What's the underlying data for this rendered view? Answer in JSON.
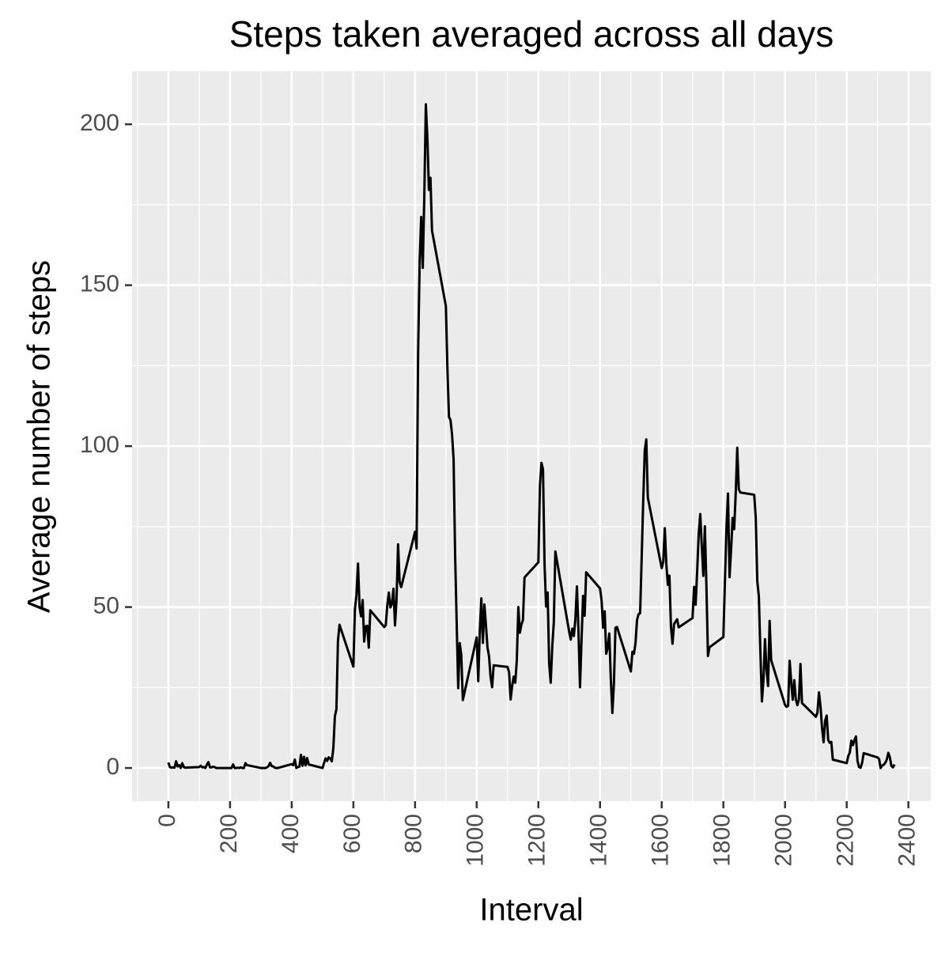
{
  "chart_data": {
    "type": "line",
    "title": "Steps taken averaged across all days",
    "x_label": "Interval",
    "y_label": "Average number of steps",
    "x": [
      0,
      5,
      10,
      15,
      20,
      25,
      30,
      35,
      40,
      45,
      50,
      55,
      100,
      105,
      110,
      115,
      120,
      125,
      130,
      135,
      140,
      145,
      150,
      155,
      200,
      205,
      210,
      215,
      220,
      225,
      230,
      235,
      240,
      245,
      250,
      255,
      300,
      305,
      310,
      315,
      320,
      325,
      330,
      335,
      340,
      345,
      350,
      355,
      400,
      405,
      410,
      415,
      420,
      425,
      430,
      435,
      440,
      445,
      450,
      455,
      500,
      505,
      510,
      515,
      520,
      525,
      530,
      535,
      540,
      545,
      550,
      555,
      600,
      605,
      610,
      615,
      620,
      625,
      630,
      635,
      640,
      645,
      650,
      655,
      700,
      705,
      710,
      715,
      720,
      725,
      730,
      735,
      740,
      745,
      750,
      755,
      800,
      805,
      810,
      815,
      820,
      825,
      830,
      835,
      840,
      845,
      850,
      855,
      900,
      905,
      910,
      915,
      920,
      925,
      930,
      935,
      940,
      945,
      950,
      955,
      1000,
      1005,
      1010,
      1015,
      1020,
      1025,
      1030,
      1035,
      1040,
      1045,
      1050,
      1055,
      1100,
      1105,
      1110,
      1115,
      1120,
      1125,
      1130,
      1135,
      1140,
      1145,
      1150,
      1155,
      1200,
      1205,
      1210,
      1215,
      1220,
      1225,
      1230,
      1235,
      1240,
      1245,
      1250,
      1255,
      1300,
      1305,
      1310,
      1315,
      1320,
      1325,
      1330,
      1335,
      1340,
      1345,
      1350,
      1355,
      1400,
      1405,
      1410,
      1415,
      1420,
      1425,
      1430,
      1435,
      1440,
      1445,
      1450,
      1455,
      1500,
      1505,
      1510,
      1515,
      1520,
      1525,
      1530,
      1535,
      1540,
      1545,
      1550,
      1555,
      1600,
      1605,
      1610,
      1615,
      1620,
      1625,
      1630,
      1635,
      1640,
      1645,
      1650,
      1655,
      1700,
      1705,
      1710,
      1715,
      1720,
      1725,
      1730,
      1735,
      1740,
      1745,
      1750,
      1755,
      1800,
      1805,
      1810,
      1815,
      1820,
      1825,
      1830,
      1835,
      1840,
      1845,
      1850,
      1855,
      1900,
      1905,
      1910,
      1915,
      1920,
      1925,
      1930,
      1935,
      1940,
      1945,
      1950,
      1955,
      2000,
      2005,
      2010,
      2015,
      2020,
      2025,
      2030,
      2035,
      2040,
      2045,
      2050,
      2055,
      2100,
      2105,
      2110,
      2115,
      2120,
      2125,
      2130,
      2135,
      2140,
      2145,
      2150,
      2155,
      2200,
      2205,
      2210,
      2215,
      2220,
      2225,
      2230,
      2235,
      2240,
      2245,
      2250,
      2255,
      2300,
      2305,
      2310,
      2315,
      2320,
      2325,
      2330,
      2335,
      2340,
      2345,
      2350,
      2355
    ],
    "series": [
      {
        "color": "#000000",
        "values": [
          1.7,
          0.3,
          0.1,
          0.2,
          0.1,
          2.1,
          0.5,
          0.9,
          0,
          1.5,
          0.3,
          0.1,
          0.3,
          0.7,
          0.2,
          0.3,
          0,
          1.1,
          1.8,
          0.2,
          0.2,
          0.4,
          0.3,
          0,
          0,
          0,
          1.1,
          0,
          0,
          0.1,
          0,
          0.2,
          0,
          0,
          1.5,
          0.9,
          0,
          0,
          0,
          0,
          0.2,
          0.6,
          1.6,
          0.6,
          0.5,
          0.1,
          0,
          0,
          1.2,
          0.9,
          2.6,
          0,
          0.3,
          0.4,
          4.1,
          0.7,
          3.5,
          0.8,
          3.1,
          1.1,
          0,
          1.6,
          3,
          2.2,
          3.3,
          3,
          2.1,
          6.1,
          16,
          18.3,
          39.5,
          44.5,
          31.5,
          49.3,
          53.8,
          63.5,
          50,
          47.1,
          52.2,
          39.3,
          44,
          44.2,
          37.4,
          49,
          43.8,
          44.4,
          50.5,
          54.5,
          49.9,
          51,
          55.7,
          44.3,
          52.3,
          69.5,
          57.8,
          56.2,
          73.4,
          68.2,
          129.4,
          157.5,
          171.2,
          155.4,
          177.3,
          206.2,
          195.9,
          179.6,
          183.4,
          167,
          143.5,
          124,
          109.1,
          108.1,
          103.7,
          96,
          66.2,
          45.2,
          24.8,
          38.8,
          35,
          21.1,
          40.6,
          27,
          42.4,
          52.7,
          38.9,
          50.8,
          44.3,
          37.4,
          34.7,
          28.3,
          25.1,
          31.9,
          31.4,
          29.7,
          21.3,
          25.5,
          28.4,
          26.5,
          33.4,
          50,
          42,
          44.6,
          46,
          59.2,
          63.9,
          87.7,
          94.8,
          92.8,
          63.4,
          50.2,
          54.5,
          32.4,
          26.5,
          37.7,
          45.1,
          67.3,
          42.3,
          39.9,
          43.3,
          41,
          46.2,
          56.4,
          42.8,
          25.1,
          40,
          53.5,
          47.3,
          60.8,
          55.8,
          52,
          43.6,
          48.7,
          35.5,
          37.5,
          41.8,
          27.5,
          17.1,
          26.1,
          43.6,
          43.8,
          30,
          36.1,
          35.5,
          38.8,
          46,
          47.8,
          48.1,
          65.3,
          82.9,
          98.7,
          102.1,
          84,
          62.1,
          64.1,
          74.5,
          63.2,
          56.9,
          59.8,
          43.9,
          38.6,
          44.7,
          45.5,
          46.2,
          43.7,
          46.6,
          56.3,
          50.7,
          61.2,
          72.7,
          78.9,
          68.9,
          59.7,
          75.1,
          56.5,
          34.8,
          37.5,
          40.7,
          58,
          74.7,
          85.3,
          59.3,
          67.8,
          77.7,
          74.2,
          85.3,
          99.5,
          86.6,
          85.6,
          84.9,
          77.8,
          58,
          53.4,
          36.3,
          20.7,
          27.4,
          40,
          30.2,
          25.5,
          45.7,
          33.5,
          19.6,
          19,
          19.3,
          33.3,
          26.8,
          21.2,
          27.3,
          21.3,
          19.5,
          21.3,
          32.3,
          20.2,
          15.9,
          17.2,
          23.5,
          19.2,
          12.5,
          8,
          14.7,
          16.3,
          8.7,
          7.8,
          8.1,
          2.6,
          1.5,
          3.7,
          4.8,
          8.5,
          7.1,
          8.7,
          9.8,
          2.2,
          0.3,
          0.1,
          1.6,
          4.6,
          3.3,
          2.8,
          0,
          0.8,
          1,
          1.6,
          2.6,
          4.7,
          3.3,
          0.6,
          0.2,
          1.1
        ]
      }
    ],
    "xlim": [
      -117.75,
      2472.75
    ],
    "ylim": [
      -10.3,
      216.5
    ],
    "xticks": [
      0,
      200,
      400,
      600,
      800,
      1000,
      1200,
      1400,
      1600,
      1800,
      2000,
      2200,
      2400
    ],
    "yticks": [
      0,
      50,
      100,
      150,
      200
    ],
    "grid": true
  }
}
